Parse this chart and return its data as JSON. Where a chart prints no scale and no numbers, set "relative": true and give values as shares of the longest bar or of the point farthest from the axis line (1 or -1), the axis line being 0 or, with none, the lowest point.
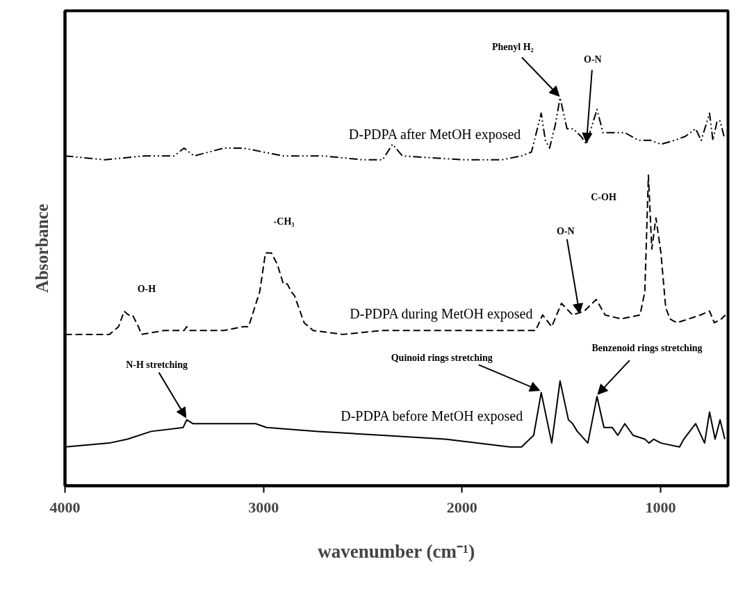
{
  "chart_data": {
    "type": "line",
    "xlabel": "wavenumber (cm⁻¹)",
    "ylabel": "Absorbance",
    "relative": true,
    "xlim": [
      4000,
      660
    ],
    "xticks": [
      4000,
      3000,
      2000,
      1000
    ],
    "grid": false,
    "series": [
      {
        "name": "D-PDPA after MetOH exposed",
        "color": "#000000",
        "line_style": "dashdot",
        "x": [
          4000,
          3800,
          3600,
          3450,
          3400,
          3350,
          3200,
          3100,
          3000,
          2900,
          2700,
          2500,
          2400,
          2350,
          2300,
          2000,
          1800,
          1700,
          1650,
          1601,
          1580,
          1559,
          1530,
          1506,
          1471,
          1440,
          1400,
          1373,
          1350,
          1320,
          1290,
          1250,
          1220,
          1180,
          1110,
          1050,
          998,
          930,
          876,
          823,
          795,
          753,
          736,
          715,
          700,
          680
        ],
        "values": [
          0.85,
          0.84,
          0.85,
          0.85,
          0.87,
          0.85,
          0.87,
          0.87,
          0.86,
          0.85,
          0.85,
          0.84,
          0.84,
          0.88,
          0.85,
          0.84,
          0.84,
          0.85,
          0.86,
          0.96,
          0.89,
          0.87,
          0.93,
          1.0,
          0.92,
          0.92,
          0.9,
          0.88,
          0.92,
          0.97,
          0.91,
          0.91,
          0.91,
          0.91,
          0.89,
          0.89,
          0.88,
          0.89,
          0.9,
          0.92,
          0.89,
          0.96,
          0.89,
          0.94,
          0.94,
          0.9
        ]
      },
      {
        "name": "D-PDPA during MetOH exposed",
        "color": "#000000",
        "line_style": "dashed",
        "x": [
          4000,
          3776,
          3730,
          3702,
          3680,
          3660,
          3630,
          3615,
          3500,
          3400,
          3387,
          3370,
          3200,
          3100,
          3075,
          3019,
          2990,
          2960,
          2930,
          2900,
          2880,
          2860,
          2844,
          2795,
          2750,
          2600,
          2400,
          2000,
          1700,
          1629,
          1594,
          1548,
          1499,
          1443,
          1384,
          1324,
          1279,
          1198,
          1103,
          1079,
          1061,
          1044,
          1023,
          998,
          974,
          953,
          918,
          858,
          799,
          753,
          729,
          693,
          673
        ],
        "values": [
          0.39,
          0.39,
          0.41,
          0.45,
          0.44,
          0.44,
          0.41,
          0.39,
          0.4,
          0.4,
          0.41,
          0.4,
          0.4,
          0.41,
          0.41,
          0.5,
          0.6,
          0.6,
          0.57,
          0.52,
          0.52,
          0.5,
          0.49,
          0.42,
          0.4,
          0.39,
          0.4,
          0.4,
          0.4,
          0.4,
          0.44,
          0.41,
          0.47,
          0.44,
          0.45,
          0.48,
          0.44,
          0.43,
          0.44,
          0.5,
          0.8,
          0.61,
          0.69,
          0.6,
          0.46,
          0.43,
          0.42,
          0.43,
          0.44,
          0.45,
          0.42,
          0.43,
          0.44
        ]
      },
      {
        "name": "D-PDPA before MetOH exposed",
        "color": "#000000",
        "line_style": "solid",
        "x": [
          4000,
          3776,
          3685,
          3566,
          3405,
          3387,
          3356,
          3194,
          3040,
          2984,
          2725,
          2399,
          2084,
          1758,
          1700,
          1639,
          1601,
          1548,
          1506,
          1464,
          1443,
          1419,
          1366,
          1320,
          1285,
          1243,
          1215,
          1180,
          1138,
          1079,
          1058,
          1034,
          998,
          904,
          883,
          823,
          778,
          753,
          725,
          700,
          676
        ],
        "values": [
          0.1,
          0.11,
          0.12,
          0.14,
          0.15,
          0.17,
          0.16,
          0.16,
          0.16,
          0.15,
          0.14,
          0.13,
          0.12,
          0.1,
          0.1,
          0.13,
          0.24,
          0.11,
          0.27,
          0.17,
          0.16,
          0.14,
          0.11,
          0.23,
          0.15,
          0.15,
          0.13,
          0.16,
          0.13,
          0.12,
          0.11,
          0.12,
          0.11,
          0.1,
          0.12,
          0.16,
          0.11,
          0.19,
          0.12,
          0.17,
          0.12
        ]
      }
    ],
    "annotations": [
      {
        "text": "Phenyl H₂",
        "x": 1506,
        "y": 1.0
      },
      {
        "text": "O-N",
        "x": 1373,
        "y": 0.88
      },
      {
        "text": "-CH₃",
        "x": 2960,
        "y": 0.6
      },
      {
        "text": "O-H",
        "x": 3680,
        "y": 0.44
      },
      {
        "text": "O-N",
        "x": 1408,
        "y": 0.44
      },
      "C-OH",
      {
        "text": "N-H stretching",
        "x": 3387,
        "y": 0.17
      },
      {
        "text": "Quinoid rings stretching",
        "x": 1601,
        "y": 0.24
      },
      {
        "text": "Benzenoid rings stretching",
        "x": 1320,
        "y": 0.23
      }
    ]
  }
}
